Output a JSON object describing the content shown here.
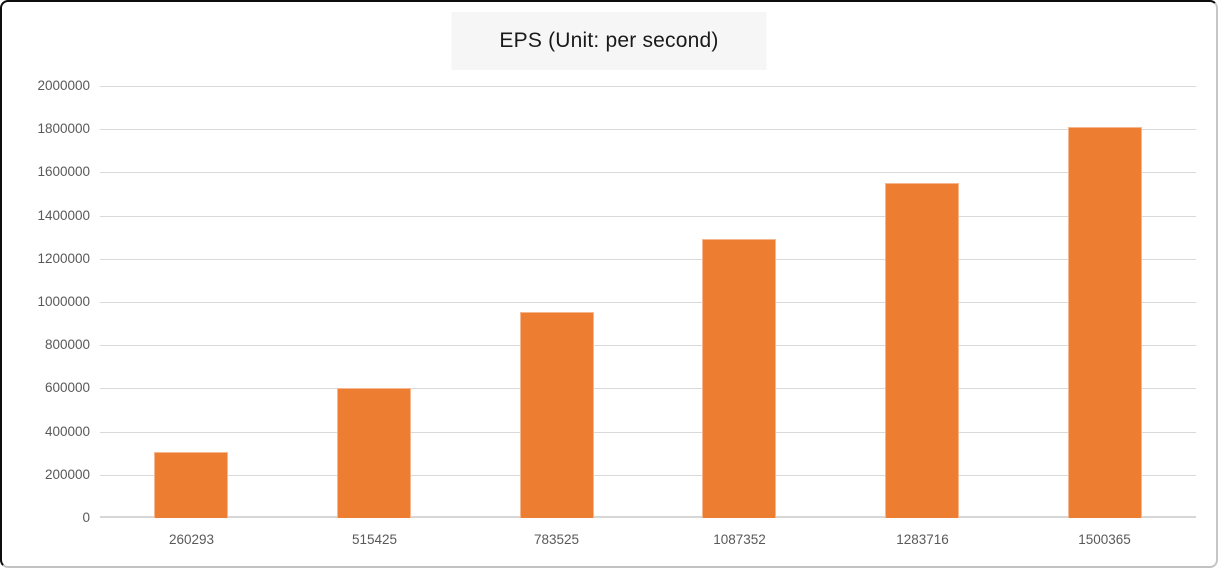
{
  "window": {
    "background": "#ffffff",
    "border_dark": "#0d0d0d",
    "border_light": "#c6c6c6"
  },
  "chart_data": {
    "type": "bar",
    "title": "EPS (Unit: per second)",
    "categories": [
      "260293",
      "515425",
      "783525",
      "1087352",
      "1283716",
      "1500365"
    ],
    "values": [
      305000,
      600000,
      955000,
      1293000,
      1550000,
      1810000
    ],
    "xlabel": "",
    "ylabel": "",
    "ylim": [
      0,
      2000000
    ],
    "ytick_step": 200000,
    "yticks": [
      0,
      200000,
      400000,
      600000,
      800000,
      1000000,
      1200000,
      1400000,
      1600000,
      1800000,
      2000000
    ],
    "grid": true,
    "legend": null,
    "colors": {
      "bar": "#ED7D31",
      "gridline": "#D9D9D9",
      "axis_line": "#D6D6D6",
      "tick_label": "#595959",
      "title": "#1a1a1a",
      "title_highlight": "#f6f6f6"
    }
  }
}
